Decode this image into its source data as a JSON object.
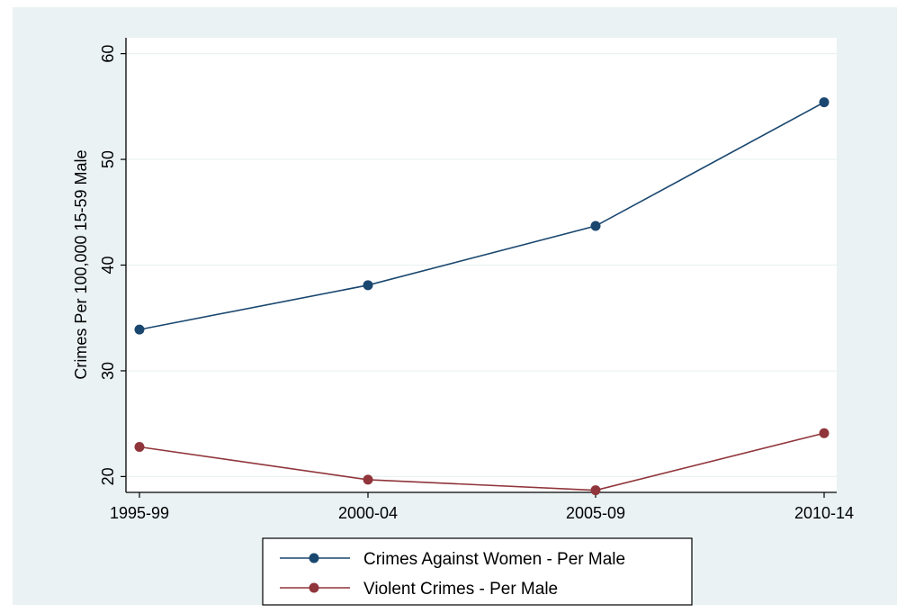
{
  "colors": {
    "outer_background": "#eaf2f3",
    "plot_background": "#ffffff",
    "gridline": "#eaf2f3",
    "series_1": "#1a476f",
    "series_2": "#90353b"
  },
  "chart_data": {
    "type": "line",
    "title": "",
    "xlabel": "",
    "ylabel": "Crimes Per 100,000 15-59 Male",
    "categories": [
      "1995-99",
      "2000-04",
      "2005-09",
      "2010-14"
    ],
    "ylim": [
      18.5,
      61.5
    ],
    "yticks": [
      20,
      30,
      40,
      50,
      60
    ],
    "grid": true,
    "legend_position": "bottom",
    "series": [
      {
        "name": "Crimes Against Women - Per Male",
        "values": [
          33.9,
          38.1,
          43.7,
          55.4
        ],
        "color": "#1a476f"
      },
      {
        "name": "Violent Crimes - Per Male",
        "values": [
          22.8,
          19.7,
          18.7,
          24.1
        ],
        "color": "#90353b"
      }
    ]
  }
}
